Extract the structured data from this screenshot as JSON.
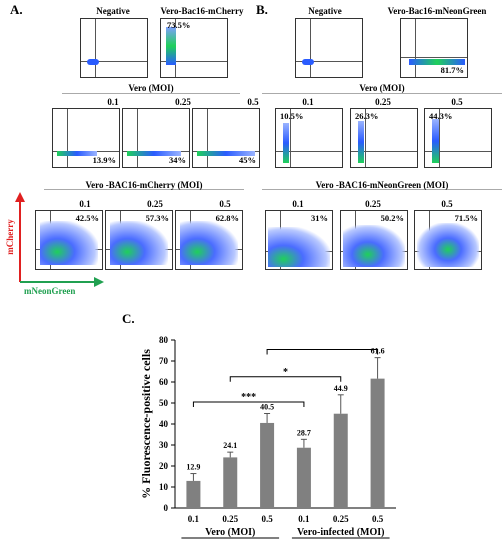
{
  "panel_a": {
    "label": "A.",
    "header_negative": "Negative",
    "header_control": "Vero-Bac16-mCherry",
    "control_pct": "73.5%",
    "row2_title": "Vero (MOI)",
    "row3_title": "Vero -BAC16-mCherry (MOI)",
    "moi": [
      "0.1",
      "0.25",
      "0.5"
    ],
    "row2_pcts": [
      "13.9%",
      "34%",
      "45%"
    ],
    "row3_pcts": [
      "42.5%",
      "57.3%",
      "62.8%"
    ]
  },
  "panel_b": {
    "label": "B.",
    "header_negative": "Negative",
    "header_control": "Vero-Bac16-mNeonGreen",
    "control_pct": "81.7%",
    "row2_title": "Vero (MOI)",
    "row3_title": "Vero -BAC16-mNeonGreen (MOI)",
    "moi": [
      "0.1",
      "0.25",
      "0.5"
    ],
    "row2_pcts": [
      "10.5%",
      "26.3%",
      "44.3%"
    ],
    "row3_pcts": [
      "31%",
      "50.2%",
      "71.5%"
    ]
  },
  "axis_legend": {
    "y_label": "mCherry",
    "x_label": "mNeonGreen",
    "y_color": "#e02020",
    "x_color": "#20a050"
  },
  "panel_c": {
    "label": "C.",
    "group_labels": [
      "Vero (MOI)",
      "Vero-infected (MOI)"
    ],
    "significance": [
      "***",
      "*"
    ]
  },
  "chart_data": {
    "type": "bar",
    "categories": [
      "0.1",
      "0.25",
      "0.5",
      "0.1",
      "0.25",
      "0.5"
    ],
    "values": [
      12.9,
      24.1,
      40.5,
      28.7,
      44.9,
      61.6
    ],
    "value_labels": [
      "12.9",
      "24.1",
      "40.5",
      "28.7",
      "44.9",
      "61.6"
    ],
    "errors": [
      3.5,
      2.5,
      4.5,
      4.0,
      9.0,
      10.0
    ],
    "ylabel": "% Fluorescence-positive cells",
    "ylim": [
      0,
      80
    ],
    "yticks": [
      0,
      10,
      20,
      30,
      40,
      50,
      60,
      70,
      80
    ],
    "bar_color": "#808080"
  }
}
